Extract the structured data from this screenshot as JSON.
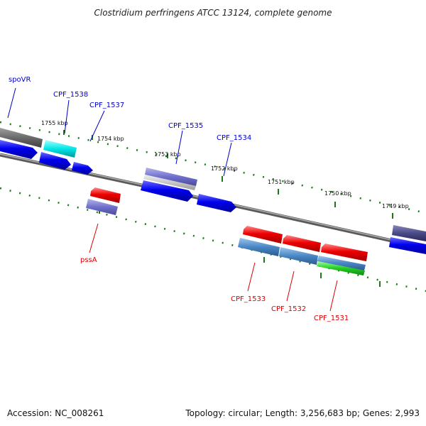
{
  "title": "Clostridium perfringens ATCC 13124, complete genome",
  "footer": {
    "accession": "Accession: NC_008261",
    "summary": "Topology: circular; Length: 3,256,683 bp; Genes: 2,993"
  },
  "kbp_labels": [
    "1755 kbp",
    "1754 kbp",
    "1753 kbp",
    "1752 kbp",
    "1751 kbp",
    "1750 kbp",
    "1749 kbp"
  ],
  "gene_labels": {
    "forward": [
      "spoVR",
      "CPF_1538",
      "CPF_1537",
      "CPF_1535",
      "CPF_1534"
    ],
    "reverse": [
      "pssA",
      "CPF_1533",
      "CPF_1532",
      "CPF_1531"
    ]
  },
  "colors": {
    "forward_label": "#0000cc",
    "reverse_label": "#dd0000",
    "tick": "#1a7a1a",
    "backbone": "#808080"
  }
}
